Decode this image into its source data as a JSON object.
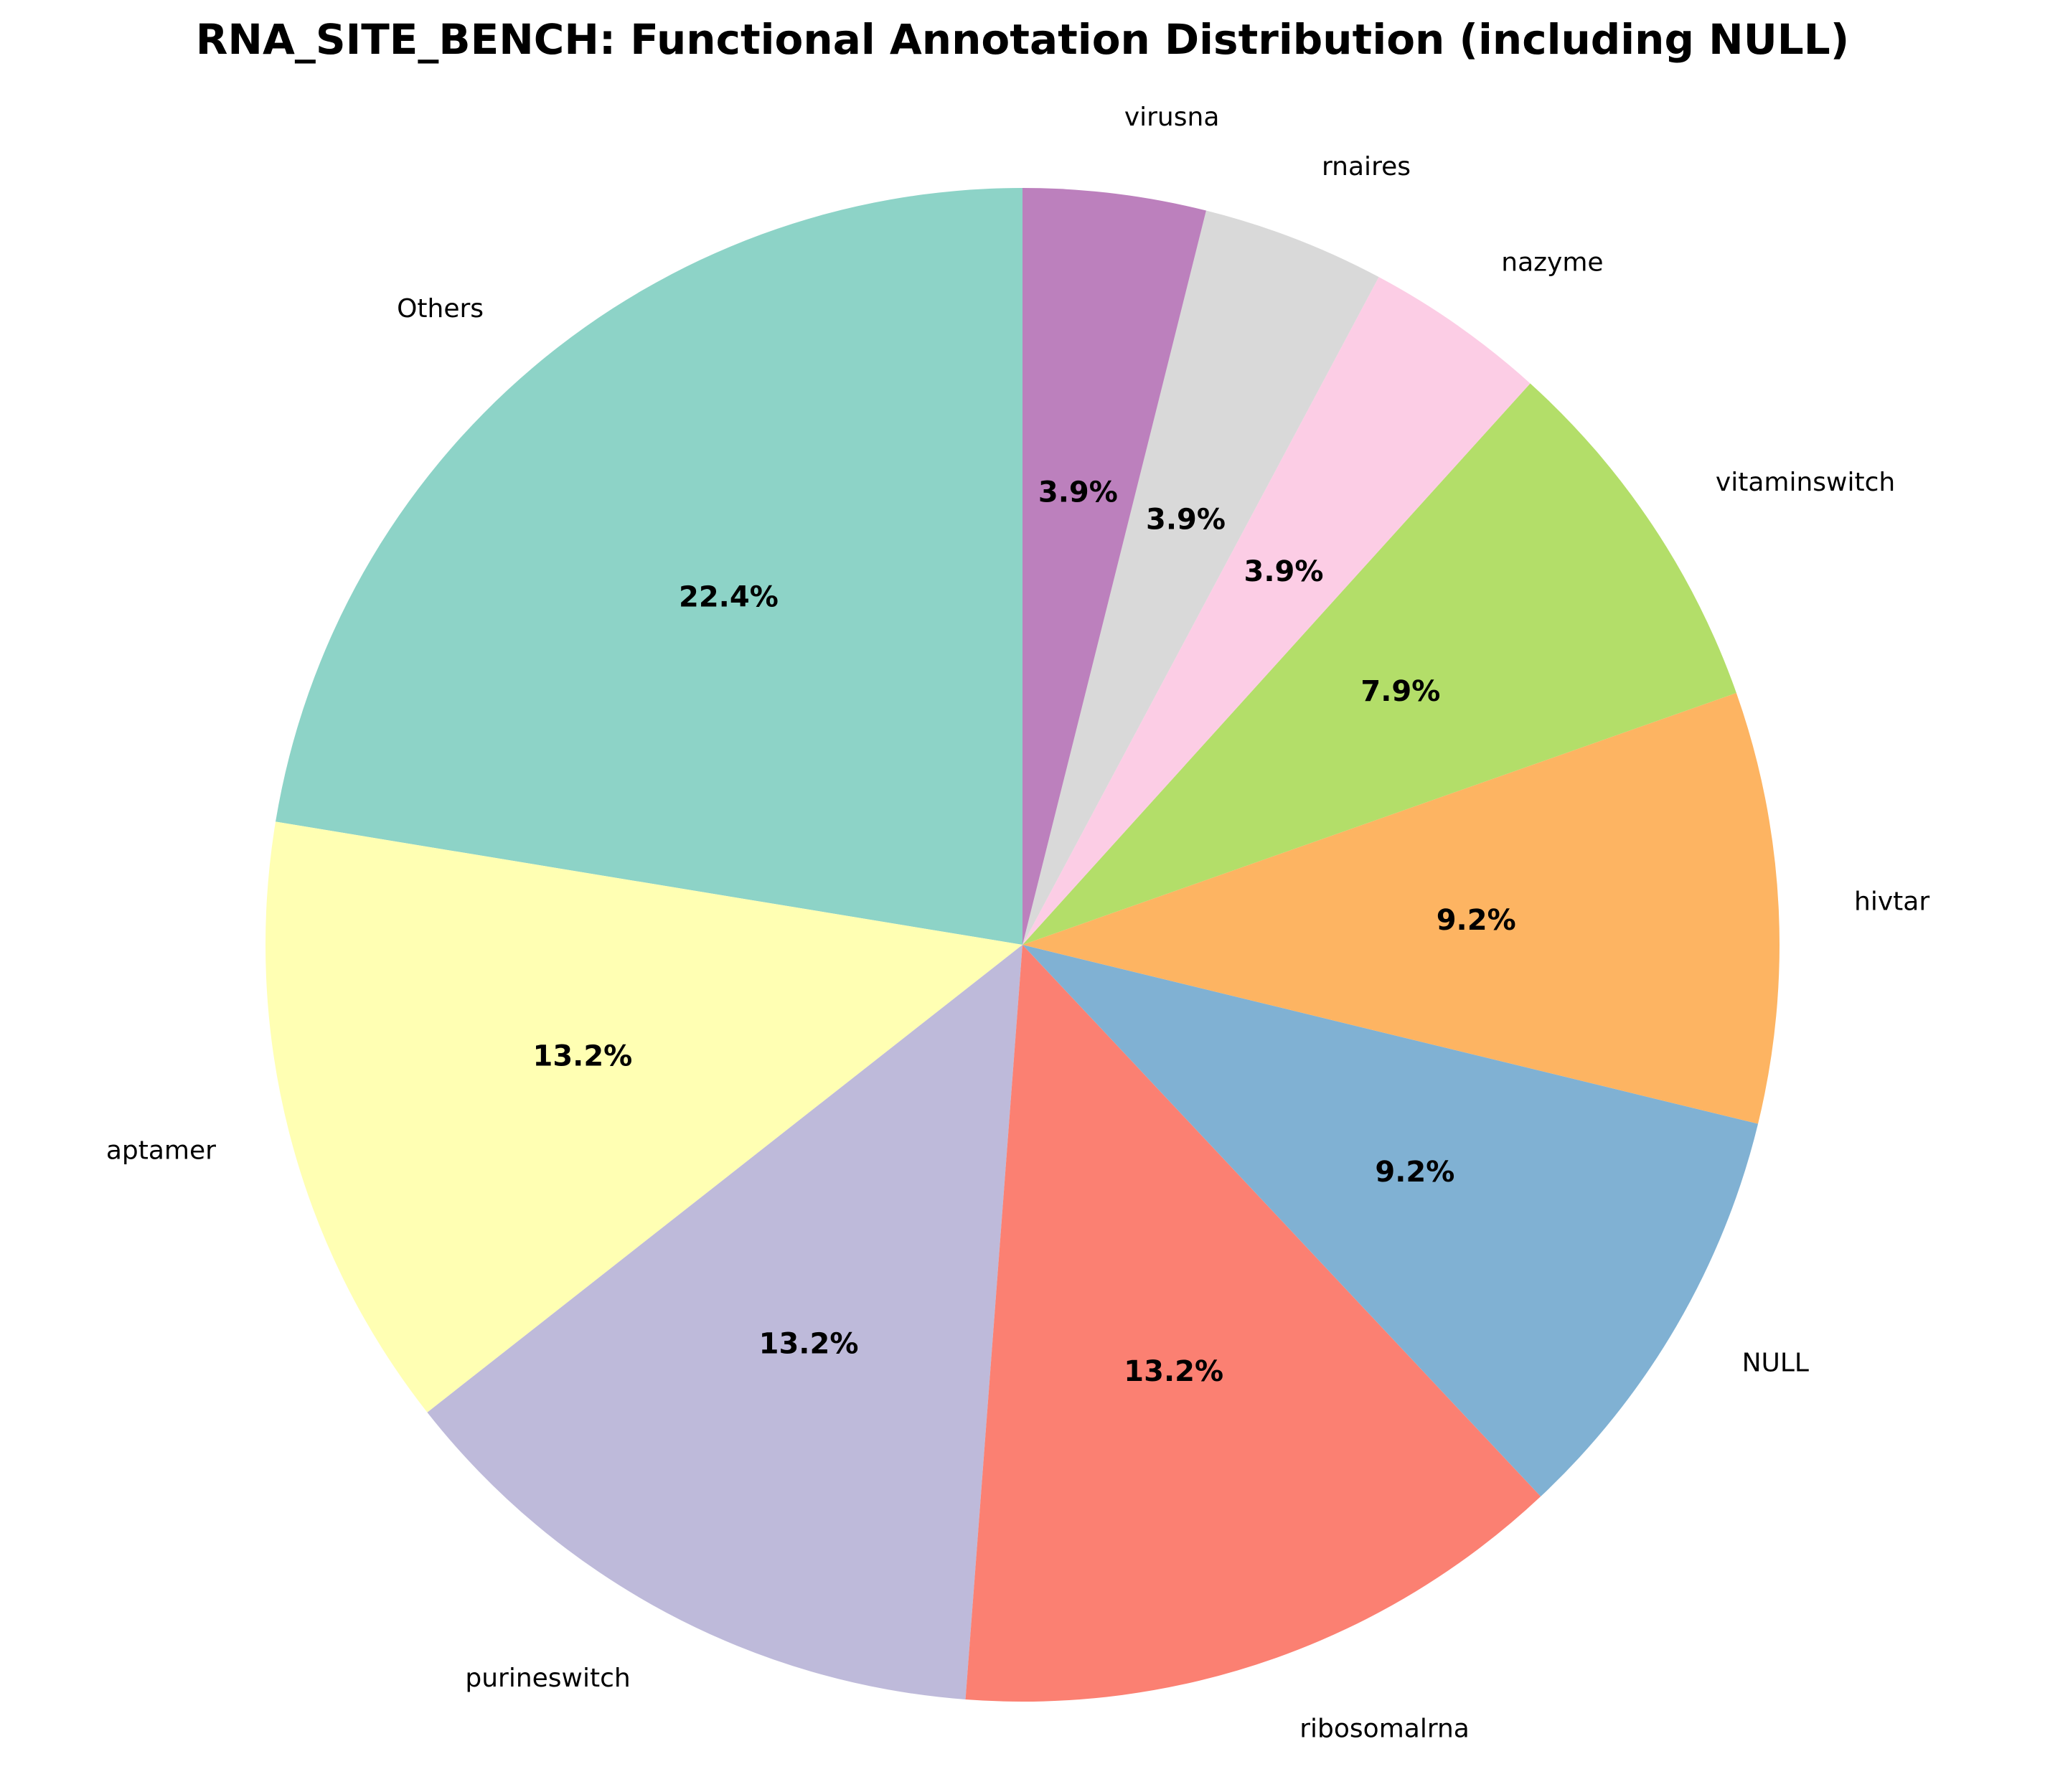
{
  "chart_data": {
    "type": "pie",
    "title": "RNA_SITE_BENCH: Functional Annotation Distribution (including NULL)",
    "start_angle_deg": 90,
    "direction": "counterclockwise",
    "slices": [
      {
        "label": "Others",
        "value": 22.4,
        "pct_label": "22.4%",
        "color": "#8dd3c7"
      },
      {
        "label": "aptamer",
        "value": 13.2,
        "pct_label": "13.2%",
        "color": "#ffffb3"
      },
      {
        "label": "purineswitch",
        "value": 13.2,
        "pct_label": "13.2%",
        "color": "#bebada"
      },
      {
        "label": "ribosomalrna",
        "value": 13.2,
        "pct_label": "13.2%",
        "color": "#fb8072"
      },
      {
        "label": "NULL",
        "value": 9.2,
        "pct_label": "9.2%",
        "color": "#80b1d3"
      },
      {
        "label": "hivtar",
        "value": 9.2,
        "pct_label": "9.2%",
        "color": "#fdb462"
      },
      {
        "label": "vitaminswitch",
        "value": 7.9,
        "pct_label": "7.9%",
        "color": "#b3de69"
      },
      {
        "label": "nazyme",
        "value": 3.9,
        "pct_label": "3.9%",
        "color": "#fccde5"
      },
      {
        "label": "rnaires",
        "value": 3.9,
        "pct_label": "3.9%",
        "color": "#d9d9d9"
      },
      {
        "label": "virusna",
        "value": 3.9,
        "pct_label": "3.9%",
        "color": "#bc80bd"
      }
    ]
  }
}
